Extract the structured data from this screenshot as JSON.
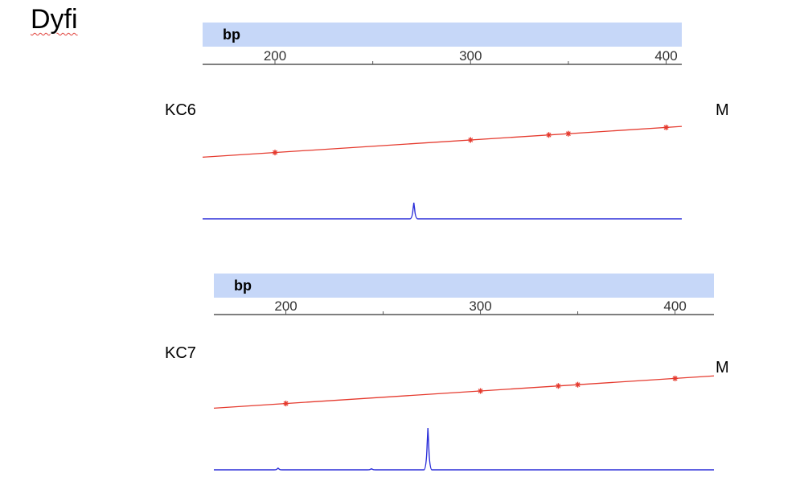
{
  "page": {
    "title": "Dyfi"
  },
  "colors": {
    "header_band": "#c6d7f8",
    "ladder": "#e53a2e",
    "trace": "#2b2fd9",
    "axis": "#555555"
  },
  "chart_data": [
    {
      "type": "line",
      "sample_label": "KC6",
      "marker_label": "M",
      "axis_unit": "bp",
      "x_ticks": [
        200,
        300,
        400
      ],
      "x_minor_ticks": [
        250,
        350
      ],
      "xlim": [
        163,
        408
      ],
      "series": [
        {
          "role": "size-standard",
          "points": [
            [
              200,
              0.32
            ],
            [
              300,
              0.45
            ],
            [
              340,
              0.5
            ],
            [
              350,
              0.515
            ],
            [
              400,
              0.58
            ]
          ]
        },
        {
          "role": "sample-trace",
          "peaks": [
            {
              "x": 271,
              "height": 1.0
            }
          ]
        }
      ]
    },
    {
      "type": "line",
      "sample_label": "KC7",
      "marker_label": "M",
      "axis_unit": "bp",
      "x_ticks": [
        200,
        300,
        400
      ],
      "x_minor_ticks": [
        250,
        350
      ],
      "xlim": [
        163,
        420
      ],
      "series": [
        {
          "role": "size-standard",
          "points": [
            [
              200,
              0.32
            ],
            [
              300,
              0.45
            ],
            [
              340,
              0.5
            ],
            [
              350,
              0.515
            ],
            [
              400,
              0.58
            ]
          ]
        },
        {
          "role": "sample-trace",
          "peaks": [
            {
              "x": 273,
              "height": 1.0
            },
            {
              "x": 196,
              "height": 0.04
            },
            {
              "x": 244,
              "height": 0.025
            }
          ]
        }
      ]
    }
  ]
}
